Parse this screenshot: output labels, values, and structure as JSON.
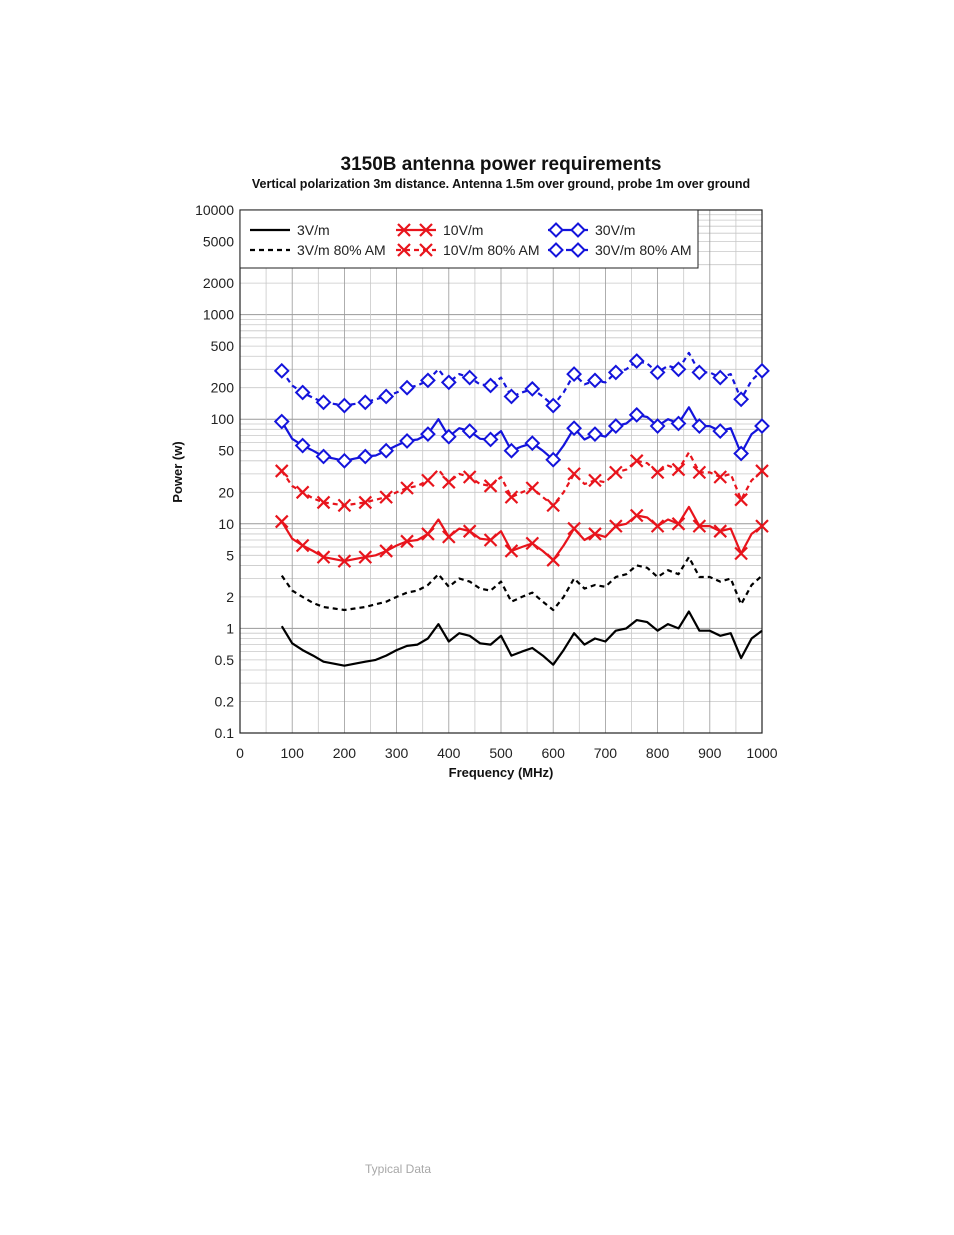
{
  "caption": "Typical Data",
  "chart_data": {
    "type": "line",
    "title": "3150B antenna power requirements",
    "subtitle": "Vertical polarization 3m distance. Antenna 1.5m over ground, probe 1m over ground",
    "xlabel": "Frequency (MHz)",
    "ylabel": "Power (w)",
    "xlim": [
      0,
      1000
    ],
    "ylim": [
      0.1,
      10000
    ],
    "yscale": "log",
    "grid": true,
    "legend_position": "top-left",
    "x_ticks": [
      "0",
      "100",
      "200",
      "300",
      "400",
      "500",
      "600",
      "700",
      "800",
      "900",
      "1000"
    ],
    "y_ticks": [
      {
        "value": 10000,
        "label": "10000"
      },
      {
        "value": 5000,
        "label": "5000"
      },
      {
        "value": 2000,
        "label": "2000"
      },
      {
        "value": 1000,
        "label": "1000"
      },
      {
        "value": 500,
        "label": "500"
      },
      {
        "value": 200,
        "label": "200"
      },
      {
        "value": 100,
        "label": "100"
      },
      {
        "value": 50,
        "label": "50"
      },
      {
        "value": 20,
        "label": "20"
      },
      {
        "value": 10,
        "label": "10"
      },
      {
        "value": 5,
        "label": "5"
      },
      {
        "value": 2,
        "label": "2"
      },
      {
        "value": 1,
        "label": "1"
      },
      {
        "value": 0.5,
        "label": "0.5"
      },
      {
        "value": 0.2,
        "label": "0.2"
      },
      {
        "value": 0.1,
        "label": "0.1"
      }
    ],
    "x": [
      80,
      100,
      120,
      140,
      160,
      180,
      200,
      220,
      240,
      260,
      280,
      300,
      320,
      340,
      360,
      380,
      400,
      420,
      440,
      460,
      480,
      500,
      520,
      540,
      560,
      580,
      600,
      620,
      640,
      660,
      680,
      700,
      720,
      740,
      760,
      780,
      800,
      820,
      840,
      860,
      880,
      900,
      920,
      940,
      960,
      980,
      1000
    ],
    "series": [
      {
        "name": "3V/m",
        "color": "#000000",
        "style": "solid",
        "marker": "none",
        "values": [
          1.05,
          0.72,
          0.62,
          0.55,
          0.48,
          0.46,
          0.44,
          0.46,
          0.48,
          0.5,
          0.55,
          0.62,
          0.68,
          0.7,
          0.8,
          1.1,
          0.75,
          0.9,
          0.85,
          0.72,
          0.7,
          0.85,
          0.55,
          0.6,
          0.65,
          0.55,
          0.45,
          0.62,
          0.9,
          0.7,
          0.8,
          0.75,
          0.95,
          1.0,
          1.2,
          1.15,
          0.95,
          1.1,
          1.0,
          1.45,
          0.95,
          0.95,
          0.85,
          0.9,
          0.52,
          0.8,
          0.95
        ]
      },
      {
        "name": "3V/m 80% AM",
        "color": "#000000",
        "style": "dashed",
        "marker": "none",
        "values": [
          3.2,
          2.3,
          2.0,
          1.75,
          1.6,
          1.55,
          1.5,
          1.55,
          1.6,
          1.7,
          1.8,
          2.0,
          2.2,
          2.3,
          2.6,
          3.3,
          2.5,
          3.0,
          2.8,
          2.4,
          2.3,
          2.8,
          1.8,
          2.0,
          2.2,
          1.8,
          1.5,
          2.0,
          3.0,
          2.4,
          2.6,
          2.5,
          3.1,
          3.3,
          4.0,
          3.8,
          3.1,
          3.6,
          3.3,
          4.8,
          3.1,
          3.1,
          2.8,
          3.0,
          1.7,
          2.6,
          3.2
        ]
      },
      {
        "name": "10V/m",
        "color": "#e8141c",
        "style": "solid",
        "marker": "x",
        "values": [
          10.5,
          7.2,
          6.2,
          5.5,
          4.8,
          4.6,
          4.4,
          4.6,
          4.8,
          5.0,
          5.5,
          6.2,
          6.8,
          7.0,
          8.0,
          11.0,
          7.5,
          9.0,
          8.5,
          7.2,
          7.0,
          8.5,
          5.5,
          6.0,
          6.5,
          5.5,
          4.5,
          6.2,
          9.0,
          7.0,
          8.0,
          7.5,
          9.5,
          10.0,
          12.0,
          11.5,
          9.5,
          11.0,
          10.0,
          14.5,
          9.5,
          9.5,
          8.5,
          9.0,
          5.2,
          8.0,
          9.5
        ]
      },
      {
        "name": "10V/m 80% AM",
        "color": "#e8141c",
        "style": "dashed",
        "marker": "x",
        "values": [
          32,
          23,
          20,
          17.5,
          16,
          15.5,
          15,
          15.5,
          16,
          17,
          18,
          20,
          22,
          23,
          26,
          33,
          25,
          30,
          28,
          24,
          23,
          28,
          18,
          20,
          22,
          18,
          15,
          20,
          30,
          24,
          26,
          25,
          31,
          33,
          40,
          38,
          31,
          36,
          33,
          48,
          31,
          31,
          28,
          30,
          17,
          26,
          32
        ]
      },
      {
        "name": "30V/m",
        "color": "#1414dc",
        "style": "solid",
        "marker": "diamond",
        "values": [
          95,
          65,
          56,
          50,
          44,
          42,
          40,
          42,
          44,
          45,
          50,
          56,
          62,
          64,
          72,
          100,
          68,
          82,
          77,
          65,
          64,
          77,
          50,
          55,
          59,
          50,
          41,
          56,
          82,
          64,
          72,
          68,
          86,
          91,
          110,
          105,
          86,
          100,
          91,
          130,
          86,
          86,
          77,
          82,
          47,
          72,
          86
        ]
      },
      {
        "name": "30V/m 80% AM",
        "color": "#1414dc",
        "style": "dashed",
        "marker": "diamond",
        "values": [
          290,
          210,
          180,
          160,
          145,
          140,
          135,
          140,
          145,
          155,
          165,
          180,
          200,
          210,
          235,
          300,
          225,
          270,
          250,
          215,
          210,
          250,
          165,
          180,
          195,
          165,
          135,
          180,
          270,
          215,
          235,
          225,
          280,
          300,
          360,
          340,
          280,
          325,
          300,
          430,
          280,
          280,
          250,
          270,
          155,
          235,
          290
        ]
      }
    ]
  }
}
